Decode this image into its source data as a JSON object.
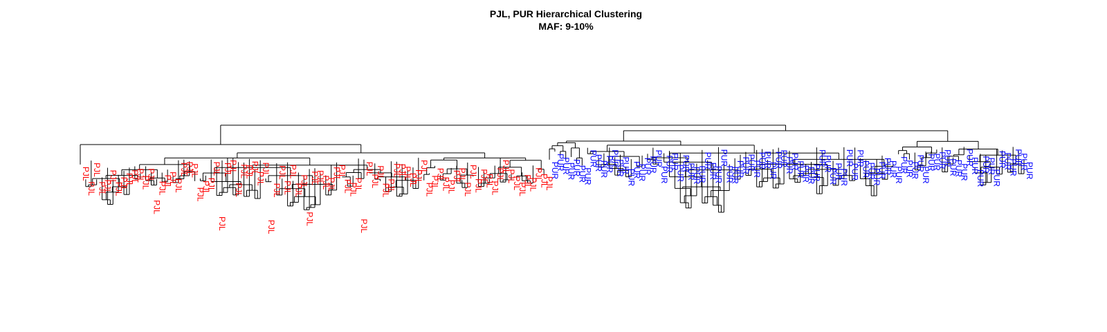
{
  "chart_data": {
    "type": "dendrogram",
    "title": "PJL, PUR Hierarchical Clustering",
    "subtitle": "MAF: 9-10%",
    "groups": [
      {
        "name": "PJL",
        "color": "#ff0000",
        "count": 86
      },
      {
        "name": "PUR",
        "color": "#0000ff",
        "count": 88
      }
    ],
    "colors": {
      "PJL": "#ff0000",
      "PUR": "#0000ff",
      "branch": "#000000"
    }
  }
}
